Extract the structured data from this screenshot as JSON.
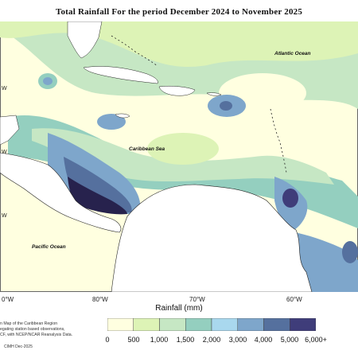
{
  "map": {
    "title": "Total Rainfall For the period December 2024 to November 2025",
    "labels": {
      "atlantic": "Atlantic Ocean",
      "caribbean": "Caribbean Sea",
      "pacific": "Pacific Ocean"
    },
    "lon_ticks": [
      "0°W",
      "80°W",
      "70°W",
      "60°W"
    ],
    "lat_ticks": [
      "W",
      "W",
      "W"
    ],
    "colors": {
      "land": "#ffffff",
      "c0": "#ffffe0",
      "c500": "#ddf3b6",
      "c1000": "#c6e7c4",
      "c1500": "#94cfbf",
      "c2000": "#a9d8ee",
      "c3000": "#7ea6cb",
      "c4000": "#55709e",
      "c5000": "#3f3d7a",
      "c6000": "#27224d"
    }
  },
  "legend": {
    "title": "Rainfall (mm)",
    "ticks": [
      "0",
      "500",
      "1,000",
      "1,500",
      "2,000",
      "3,000",
      "4,000",
      "5,000",
      "6,000+"
    ]
  },
  "notes": {
    "description": "n Map of the Caribbean Region\negating station based observations,\nCF, with NCEP/NCAR Reanalysis Data.",
    "credit": "CIMH Dec-2025"
  }
}
